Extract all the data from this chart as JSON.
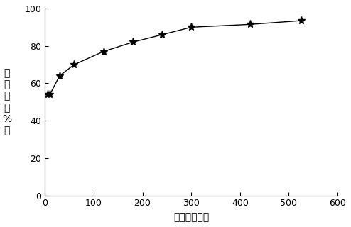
{
  "x": [
    5,
    10,
    30,
    60,
    120,
    180,
    240,
    300,
    420,
    525
  ],
  "y": [
    54,
    54,
    64,
    70,
    77,
    82,
    86,
    90,
    91.5,
    93.5
  ],
  "xlim": [
    0,
    600
  ],
  "ylim": [
    0,
    100
  ],
  "xticks": [
    0,
    100,
    200,
    300,
    400,
    500,
    600
  ],
  "yticks": [
    0,
    20,
    40,
    60,
    80,
    100
  ],
  "xlabel": "时间（分钟）",
  "ylabel": "去除率（%）",
  "line_color": "#000000",
  "marker": "*",
  "markersize": 8,
  "linewidth": 1.0,
  "xlabel_fontsize": 10,
  "ylabel_fontsize": 10,
  "tick_fontsize": 9,
  "background_color": "#ffffff"
}
